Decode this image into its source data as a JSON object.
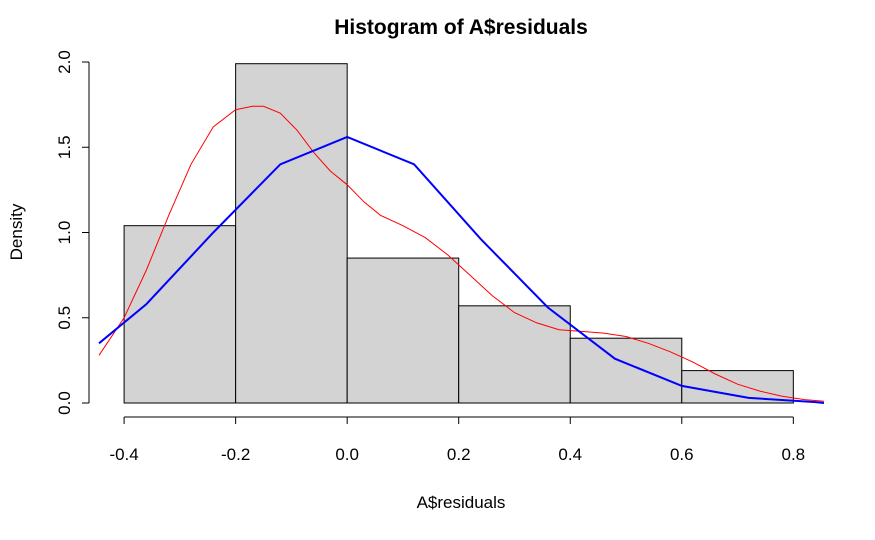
{
  "chart_data": {
    "type": "bar",
    "title": "Histogram of A$residuals",
    "xlabel": "A$residuals",
    "ylabel": "Density",
    "xlim": [
      -0.445,
      0.855
    ],
    "ylim": [
      0,
      2.0
    ],
    "x_ticks": [
      -0.4,
      -0.2,
      0.0,
      0.2,
      0.4,
      0.6,
      0.8
    ],
    "x_tick_labels": [
      "-0.4",
      "-0.2",
      "0.0",
      "0.2",
      "0.4",
      "0.6",
      "0.8"
    ],
    "y_ticks": [
      0,
      0.5,
      1.0,
      1.5,
      2.0
    ],
    "y_tick_labels": [
      "0.0",
      "0.5",
      "1.0",
      "1.5",
      "2.0"
    ],
    "bins": [
      {
        "from": -0.4,
        "to": -0.2,
        "density": 1.04
      },
      {
        "from": -0.2,
        "to": 0.0,
        "density": 1.99
      },
      {
        "from": 0.0,
        "to": 0.2,
        "density": 0.85
      },
      {
        "from": 0.2,
        "to": 0.4,
        "density": 0.57
      },
      {
        "from": 0.4,
        "to": 0.6,
        "density": 0.38
      },
      {
        "from": 0.6,
        "to": 0.8,
        "density": 0.19
      }
    ],
    "series": [
      {
        "color": "#ff0000",
        "x": [
          -0.445,
          -0.4,
          -0.36,
          -0.32,
          -0.28,
          -0.24,
          -0.2,
          -0.17,
          -0.15,
          -0.12,
          -0.09,
          -0.06,
          -0.03,
          0.0,
          0.03,
          0.06,
          0.1,
          0.14,
          0.18,
          0.22,
          0.26,
          0.3,
          0.34,
          0.38,
          0.42,
          0.46,
          0.5,
          0.54,
          0.58,
          0.62,
          0.66,
          0.7,
          0.74,
          0.78,
          0.82,
          0.855
        ],
        "y": [
          0.28,
          0.5,
          0.78,
          1.1,
          1.4,
          1.62,
          1.72,
          1.74,
          1.74,
          1.7,
          1.6,
          1.47,
          1.36,
          1.28,
          1.18,
          1.1,
          1.04,
          0.97,
          0.87,
          0.75,
          0.63,
          0.53,
          0.47,
          0.43,
          0.42,
          0.41,
          0.39,
          0.35,
          0.3,
          0.24,
          0.17,
          0.11,
          0.07,
          0.04,
          0.02,
          0.01
        ]
      },
      {
        "color": "#0000ff",
        "x": [
          -0.445,
          -0.36,
          -0.24,
          -0.12,
          0.0,
          0.12,
          0.24,
          0.36,
          0.48,
          0.6,
          0.72,
          0.84,
          0.855
        ],
        "y": [
          0.35,
          0.58,
          1.0,
          1.4,
          1.56,
          1.4,
          0.96,
          0.56,
          0.26,
          0.1,
          0.03,
          0.005,
          0.0
        ]
      }
    ]
  }
}
